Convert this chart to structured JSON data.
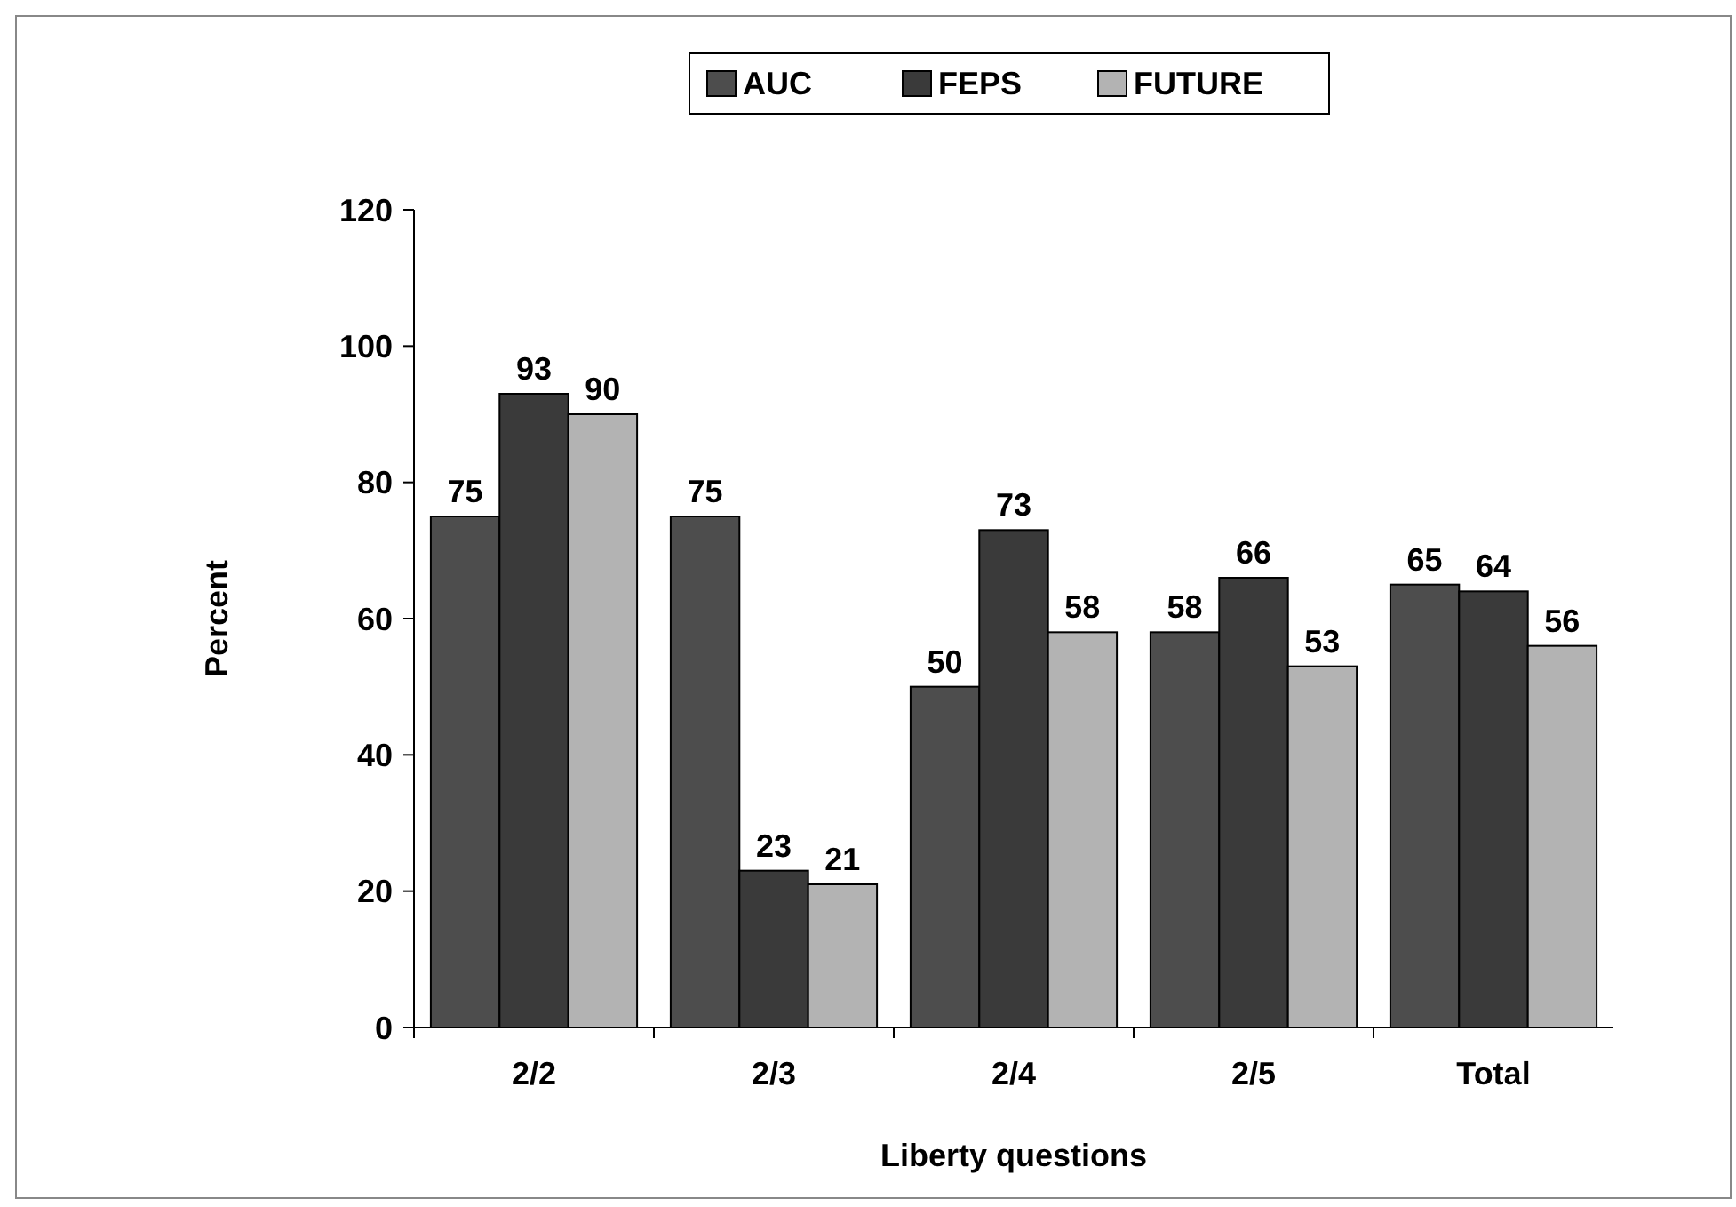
{
  "chart_data": {
    "type": "bar",
    "xlabel": "Liberty questions",
    "ylabel": "Percent",
    "categories": [
      "2/2",
      "2/3",
      "2/4",
      "2/5",
      "Total"
    ],
    "series": [
      {
        "name": "AUC",
        "color": "#4d4d4d",
        "values": [
          75,
          75,
          50,
          58,
          65
        ]
      },
      {
        "name": "FEPS",
        "color": "#3a3a3a",
        "values": [
          93,
          23,
          73,
          66,
          64
        ]
      },
      {
        "name": "FUTURE",
        "color": "#b3b3b3",
        "values": [
          90,
          21,
          58,
          53,
          56
        ]
      }
    ],
    "ylim": [
      0,
      120
    ],
    "yticks": [
      0,
      20,
      40,
      60,
      80,
      100,
      120
    ],
    "grid": false,
    "legend": "top",
    "data_labels": true
  }
}
